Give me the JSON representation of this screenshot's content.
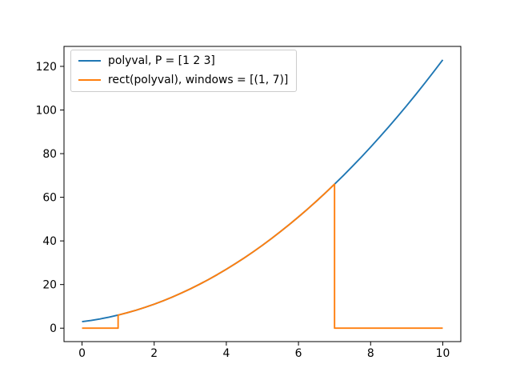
{
  "figure": {
    "background": "#ffffff",
    "spine_color": "#000000",
    "tick_color": "#000000"
  },
  "chart_data": {
    "type": "line",
    "title": "",
    "xlabel": "",
    "ylabel": "",
    "grid": false,
    "xlim": [
      -0.5,
      10.5
    ],
    "ylim": [
      -6.15,
      129.15
    ],
    "xticks": [
      0,
      2,
      4,
      6,
      8,
      10
    ],
    "yticks": [
      0,
      20,
      40,
      60,
      80,
      100,
      120
    ],
    "legend": {
      "position": "upper left",
      "frame": true
    },
    "series": [
      {
        "name": "polyval, P = [1 2 3]",
        "color": "#1f77b4",
        "x": [
          0,
          0.25,
          0.5,
          0.75,
          1,
          1.25,
          1.5,
          1.75,
          2,
          2.25,
          2.5,
          2.75,
          3,
          3.25,
          3.5,
          3.75,
          4,
          4.25,
          4.5,
          4.75,
          5,
          5.25,
          5.5,
          5.75,
          6,
          6.25,
          6.5,
          6.75,
          7,
          7.25,
          7.5,
          7.75,
          8,
          8.25,
          8.5,
          8.75,
          9,
          9.25,
          9.5,
          9.75,
          10
        ],
        "y": [
          3,
          3.5625,
          4.25,
          5.0625,
          6,
          7.0625,
          8.25,
          9.5625,
          11,
          12.5625,
          14.25,
          16.0625,
          18,
          20.0625,
          22.25,
          24.5625,
          27,
          29.5625,
          32.25,
          35.0625,
          38,
          41.0625,
          44.25,
          47.5625,
          51,
          54.5625,
          58.25,
          62.0625,
          66,
          70.0625,
          74.25,
          78.5625,
          83,
          87.5625,
          92.25,
          97.0625,
          102,
          107.0625,
          112.25,
          117.5625,
          123
        ]
      },
      {
        "name": "rect(polyval), windows = [(1, 7)]",
        "color": "#ff7f0e",
        "x": [
          0,
          1,
          1,
          1.25,
          1.5,
          1.75,
          2,
          2.25,
          2.5,
          2.75,
          3,
          3.25,
          3.5,
          3.75,
          4,
          4.25,
          4.5,
          4.75,
          5,
          5.25,
          5.5,
          5.75,
          6,
          6.25,
          6.5,
          6.75,
          7,
          7,
          10
        ],
        "y": [
          0,
          0,
          6,
          7.0625,
          8.25,
          9.5625,
          11,
          12.5625,
          14.25,
          16.0625,
          18,
          20.0625,
          22.25,
          24.5625,
          27,
          29.5625,
          32.25,
          35.0625,
          38,
          41.0625,
          44.25,
          47.5625,
          51,
          54.5625,
          58.25,
          62.0625,
          66,
          0,
          0
        ]
      }
    ]
  }
}
